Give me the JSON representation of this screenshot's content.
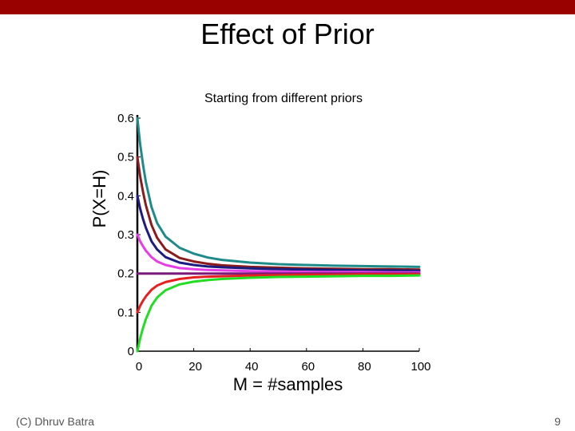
{
  "slide": {
    "title": "Effect of Prior",
    "footer_left": "(C) Dhruv Batra",
    "page_number": "9",
    "accent_color": "#990000"
  },
  "chart_data": {
    "type": "line",
    "title": "Starting from different priors",
    "xlabel": "M = #samples",
    "ylabel": "P(X=H)",
    "xlim": [
      0,
      100
    ],
    "ylim": [
      0,
      0.6
    ],
    "xticks": [
      0,
      20,
      40,
      60,
      80,
      100
    ],
    "yticks": [
      0,
      0.1,
      0.2,
      0.3,
      0.4,
      0.5,
      0.6
    ],
    "ytick_labels": [
      "0",
      "0.1",
      "0.2",
      "0.3",
      "0.4",
      "0.5",
      "0.6"
    ],
    "reference_line": {
      "y": 0.2,
      "style": "dashed",
      "color": "#000000"
    },
    "grid": false,
    "x": [
      0,
      1,
      2,
      3,
      5,
      7,
      10,
      15,
      20,
      25,
      30,
      40,
      50,
      60,
      70,
      80,
      90,
      100
    ],
    "series": [
      {
        "name": "prior 0.6",
        "color": "#1f8a8a",
        "values": [
          0.6,
          0.533,
          0.48,
          0.436,
          0.371,
          0.33,
          0.295,
          0.266,
          0.251,
          0.241,
          0.235,
          0.228,
          0.224,
          0.222,
          0.22,
          0.219,
          0.218,
          0.217
        ]
      },
      {
        "name": "prior 0.5",
        "color": "#8b1a1a",
        "values": [
          0.5,
          0.45,
          0.41,
          0.376,
          0.325,
          0.292,
          0.262,
          0.24,
          0.231,
          0.225,
          0.221,
          0.217,
          0.215,
          0.213,
          0.212,
          0.211,
          0.211,
          0.21
        ]
      },
      {
        "name": "prior 0.4",
        "color": "#1c1c80",
        "values": [
          0.4,
          0.367,
          0.34,
          0.318,
          0.283,
          0.262,
          0.242,
          0.228,
          0.222,
          0.218,
          0.216,
          0.213,
          0.211,
          0.21,
          0.209,
          0.208,
          0.208,
          0.207
        ]
      },
      {
        "name": "prior 0.3",
        "color": "#e63de6",
        "values": [
          0.3,
          0.283,
          0.27,
          0.259,
          0.242,
          0.231,
          0.222,
          0.214,
          0.211,
          0.209,
          0.208,
          0.206,
          0.205,
          0.204,
          0.204,
          0.204,
          0.203,
          0.203
        ]
      },
      {
        "name": "prior 0.2",
        "color": "#7a1a7a",
        "values": [
          0.2,
          0.2,
          0.2,
          0.2,
          0.2,
          0.2,
          0.2,
          0.2,
          0.2,
          0.2,
          0.2,
          0.2,
          0.2,
          0.2,
          0.2,
          0.2,
          0.2,
          0.2
        ]
      },
      {
        "name": "prior 0.1",
        "color": "#e62020",
        "values": [
          0.1,
          0.117,
          0.13,
          0.141,
          0.158,
          0.169,
          0.178,
          0.186,
          0.19,
          0.192,
          0.193,
          0.195,
          0.196,
          0.197,
          0.197,
          0.198,
          0.198,
          0.198
        ]
      },
      {
        "name": "prior 0.0",
        "color": "#22dd22",
        "values": [
          0.0,
          0.033,
          0.06,
          0.082,
          0.117,
          0.138,
          0.157,
          0.172,
          0.179,
          0.183,
          0.186,
          0.189,
          0.191,
          0.192,
          0.193,
          0.194,
          0.194,
          0.195
        ]
      }
    ]
  }
}
